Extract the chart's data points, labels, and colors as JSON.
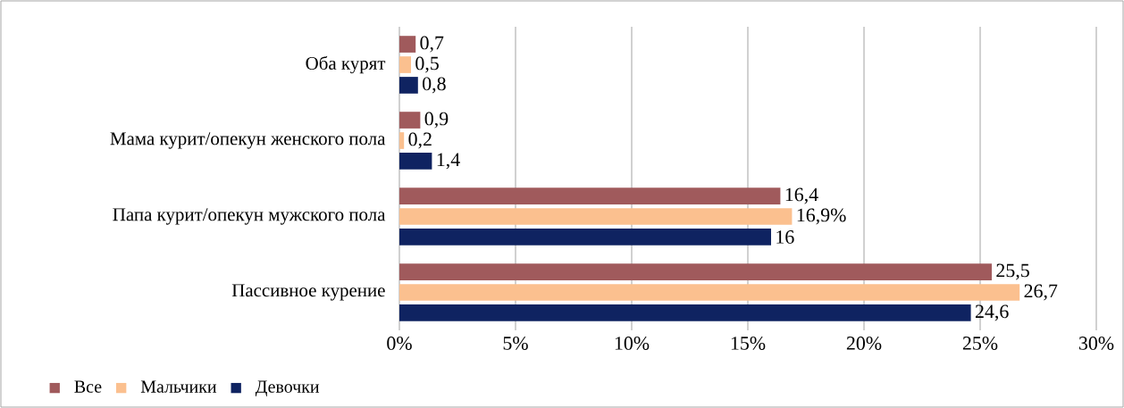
{
  "chart_data": {
    "type": "bar",
    "orientation": "horizontal",
    "categories": [
      "Оба курят",
      "Мама курит/опекун женского пола",
      "Папа курит/опекун мужского пола",
      "Пассивное курение"
    ],
    "series": [
      {
        "name": "Все",
        "color": "#a05a5c",
        "values": [
          0.7,
          0.9,
          16.4,
          25.5
        ],
        "value_labels": [
          "0,7",
          "0,9",
          "16,4",
          "25,5"
        ]
      },
      {
        "name": "Мальчики",
        "color": "#fbc08f",
        "values": [
          0.5,
          0.2,
          16.9,
          26.7
        ],
        "value_labels": [
          "0,5",
          "0,2",
          "16,9%",
          "26,7"
        ]
      },
      {
        "name": "Девочки",
        "color": "#0f2361",
        "values": [
          0.8,
          1.4,
          16,
          24.6
        ],
        "value_labels": [
          "0,8",
          "1,4",
          "16",
          "24,6"
        ]
      }
    ],
    "xlim": [
      0,
      30
    ],
    "xticks": [
      {
        "value": 0,
        "label": "0%"
      },
      {
        "value": 5,
        "label": "5%"
      },
      {
        "value": 10,
        "label": "10%"
      },
      {
        "value": 15,
        "label": "15%"
      },
      {
        "value": 20,
        "label": "20%"
      },
      {
        "value": 25,
        "label": "25%"
      },
      {
        "value": 30,
        "label": "30%"
      }
    ],
    "grid": "x",
    "legend": "bottom left"
  }
}
